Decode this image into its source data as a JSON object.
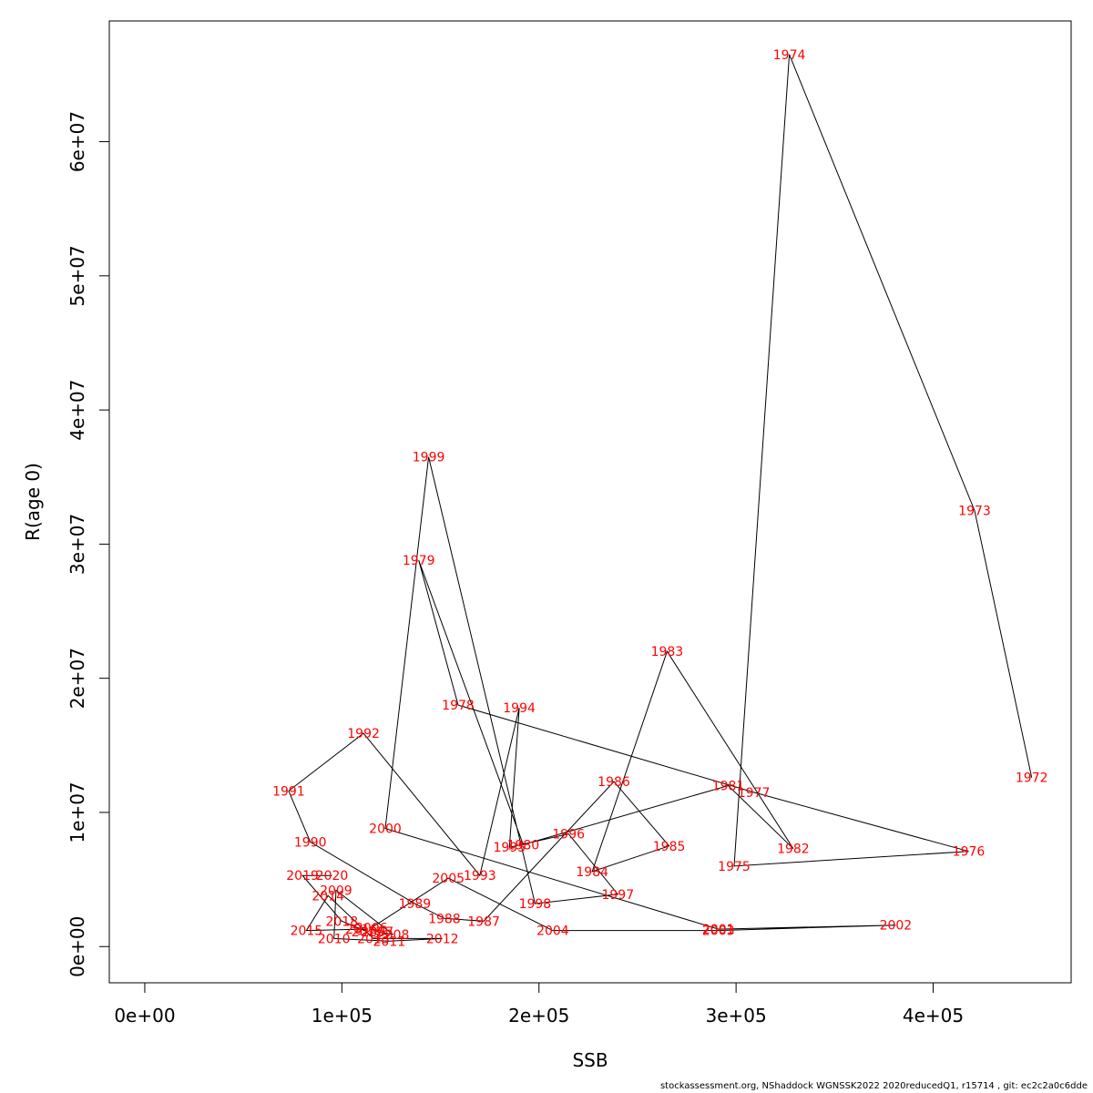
{
  "chart_data": {
    "type": "line",
    "title": "",
    "xlabel": "SSB",
    "ylabel": "R(age 0)",
    "xlim": [
      -18000,
      470000
    ],
    "ylim": [
      -2700000,
      69000000
    ],
    "x_ticks": [
      0,
      100000,
      200000,
      300000,
      400000
    ],
    "x_tick_labels": [
      "0e+00",
      "1e+05",
      "2e+05",
      "3e+05",
      "4e+05"
    ],
    "y_ticks": [
      0,
      10000000,
      20000000,
      30000000,
      40000000,
      50000000,
      60000000
    ],
    "y_tick_labels": [
      "0e+00",
      "1e+07",
      "2e+07",
      "3e+07",
      "4e+07",
      "5e+07",
      "6e+07"
    ],
    "grid": false,
    "line_color": "#000000",
    "label_color": "#ff0000",
    "points": [
      {
        "year": "1972",
        "ssb": 450000,
        "r": 12600000
      },
      {
        "year": "1973",
        "ssb": 421000,
        "r": 32500000
      },
      {
        "year": "1974",
        "ssb": 327000,
        "r": 66500000
      },
      {
        "year": "1975",
        "ssb": 299000,
        "r": 6000000
      },
      {
        "year": "1976",
        "ssb": 418000,
        "r": 7100000
      },
      {
        "year": "1977",
        "ssb": 309000,
        "r": 11500000
      },
      {
        "year": "1978",
        "ssb": 159000,
        "r": 18000000
      },
      {
        "year": "1979",
        "ssb": 139000,
        "r": 28800000
      },
      {
        "year": "1980",
        "ssb": 192000,
        "r": 7600000
      },
      {
        "year": "1981",
        "ssb": 296000,
        "r": 12000000
      },
      {
        "year": "1982",
        "ssb": 329000,
        "r": 7300000
      },
      {
        "year": "1983",
        "ssb": 265000,
        "r": 22000000
      },
      {
        "year": "1984",
        "ssb": 227000,
        "r": 5600000
      },
      {
        "year": "1985",
        "ssb": 266000,
        "r": 7500000
      },
      {
        "year": "1986",
        "ssb": 238000,
        "r": 12300000
      },
      {
        "year": "1987",
        "ssb": 172000,
        "r": 1900000
      },
      {
        "year": "1988",
        "ssb": 152000,
        "r": 2100000
      },
      {
        "year": "1989",
        "ssb": 137000,
        "r": 3200000
      },
      {
        "year": "1990",
        "ssb": 84000,
        "r": 7800000
      },
      {
        "year": "1991",
        "ssb": 73000,
        "r": 11600000
      },
      {
        "year": "1992",
        "ssb": 111000,
        "r": 15900000
      },
      {
        "year": "1993",
        "ssb": 170000,
        "r": 5300000
      },
      {
        "year": "1994",
        "ssb": 190000,
        "r": 17800000
      },
      {
        "year": "1995",
        "ssb": 185000,
        "r": 7400000
      },
      {
        "year": "1996",
        "ssb": 215000,
        "r": 8400000
      },
      {
        "year": "1997",
        "ssb": 240000,
        "r": 3900000
      },
      {
        "year": "1998",
        "ssb": 198000,
        "r": 3200000
      },
      {
        "year": "1999",
        "ssb": 144000,
        "r": 36500000
      },
      {
        "year": "2000",
        "ssb": 122000,
        "r": 8800000
      },
      {
        "year": "2001",
        "ssb": 291000,
        "r": 1300000
      },
      {
        "year": "2002",
        "ssb": 381000,
        "r": 1600000
      },
      {
        "year": "2003",
        "ssb": 291000,
        "r": 1200000
      },
      {
        "year": "2004",
        "ssb": 207000,
        "r": 1200000
      },
      {
        "year": "2005",
        "ssb": 154000,
        "r": 5100000
      },
      {
        "year": "2006",
        "ssb": 115000,
        "r": 1400000
      },
      {
        "year": "2007",
        "ssb": 118000,
        "r": 1100000
      },
      {
        "year": "2008",
        "ssb": 126000,
        "r": 900000
      },
      {
        "year": "2009",
        "ssb": 97000,
        "r": 4200000
      },
      {
        "year": "2010",
        "ssb": 96000,
        "r": 600000
      },
      {
        "year": "2011",
        "ssb": 124000,
        "r": 400000
      },
      {
        "year": "2012",
        "ssb": 151000,
        "r": 600000
      },
      {
        "year": "2013",
        "ssb": 116000,
        "r": 600000
      },
      {
        "year": "2014",
        "ssb": 93000,
        "r": 3800000
      },
      {
        "year": "2015",
        "ssb": 82000,
        "r": 1200000
      },
      {
        "year": "2016",
        "ssb": 110000,
        "r": 1300000
      },
      {
        "year": "2017",
        "ssb": 113000,
        "r": 1100000
      },
      {
        "year": "2018",
        "ssb": 100000,
        "r": 1900000
      },
      {
        "year": "2019",
        "ssb": 80000,
        "r": 5300000
      },
      {
        "year": "2020",
        "ssb": 95000,
        "r": 5300000
      }
    ]
  },
  "footer": "stockassessment.org, NShaddock  WGNSSK2022  2020reducedQ1, r15714 , git: ec2c2a0c6dde"
}
